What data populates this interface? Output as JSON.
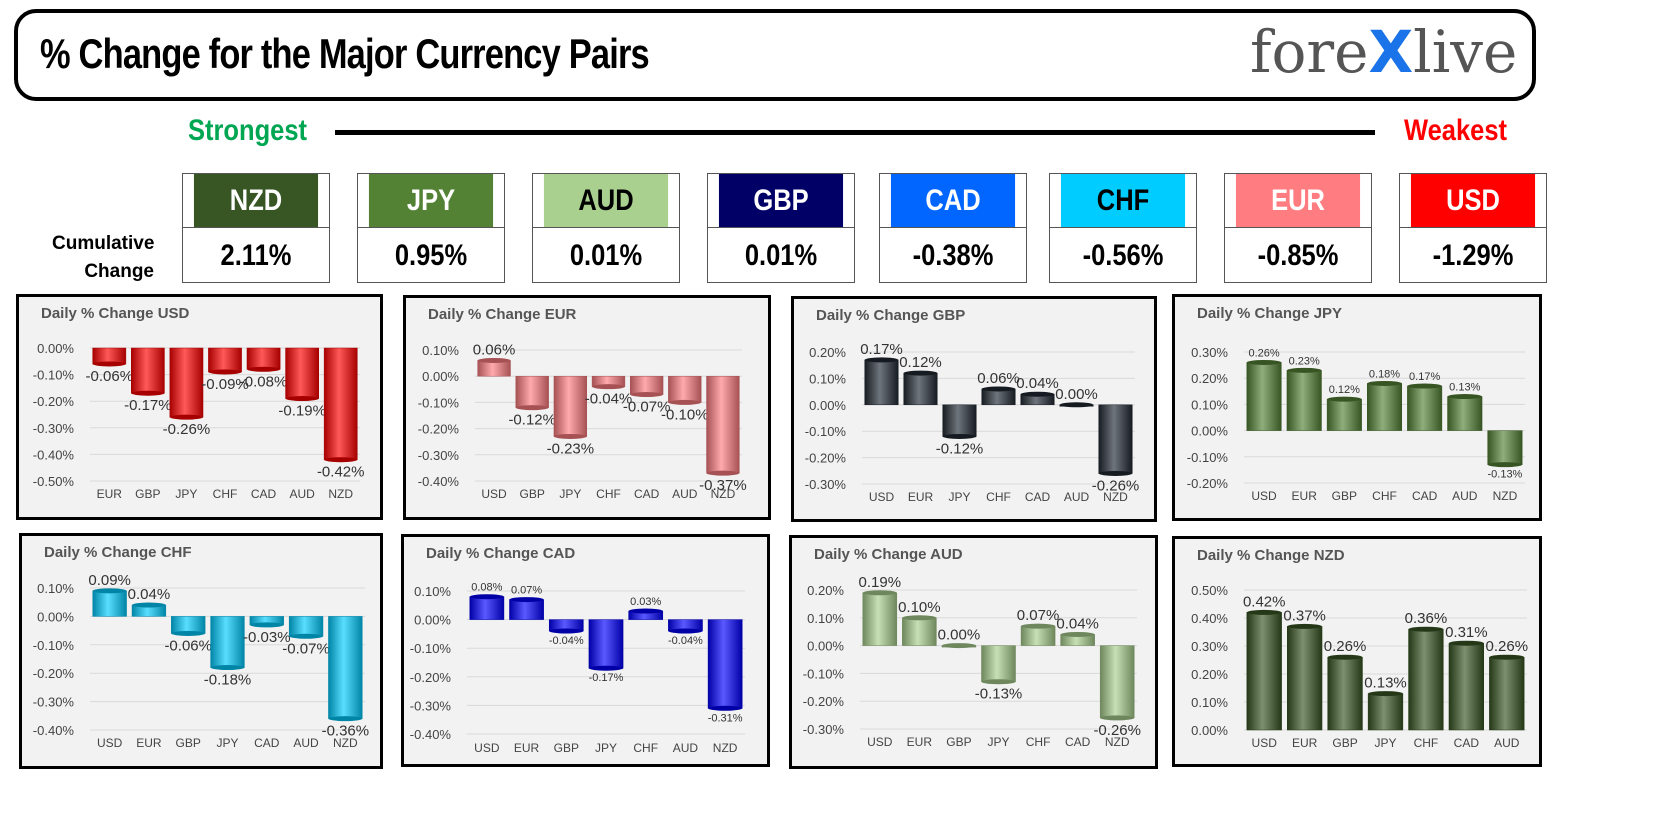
{
  "header": {
    "title": "% Change for the Major Currency Pairs",
    "logo_pre": "fore",
    "logo_x": "X",
    "logo_post": "live"
  },
  "strength_scale": {
    "strongest_label": "Strongest",
    "weakest_label": "Weakest"
  },
  "cumulative_label_line1": "Cumulative",
  "cumulative_label_line2": "Change",
  "currencies": [
    {
      "name": "NZD",
      "value": "2.11%",
      "bg": "#375623",
      "fg": "#ffffff"
    },
    {
      "name": "JPY",
      "value": "0.95%",
      "bg": "#548235",
      "fg": "#ffffff"
    },
    {
      "name": "AUD",
      "value": "0.01%",
      "bg": "#a9d08e",
      "fg": "#000000"
    },
    {
      "name": "GBP",
      "value": "0.01%",
      "bg": "#000066",
      "fg": "#ffffff"
    },
    {
      "name": "CAD",
      "value": "-0.38%",
      "bg": "#0066ff",
      "fg": "#ffffff"
    },
    {
      "name": "CHF",
      "value": "-0.56%",
      "bg": "#00ccff",
      "fg": "#000000"
    },
    {
      "name": "EUR",
      "value": "-0.85%",
      "bg": "#ff7c80",
      "fg": "#ffffff"
    },
    {
      "name": "USD",
      "value": "-1.29%",
      "bg": "#ff0000",
      "fg": "#ffffff"
    }
  ],
  "chart_data": [
    {
      "type": "bar",
      "title": "Daily % Change USD",
      "categories": [
        "EUR",
        "GBP",
        "JPY",
        "CHF",
        "CAD",
        "AUD",
        "NZD"
      ],
      "values": [
        -0.06,
        -0.17,
        -0.26,
        -0.09,
        -0.08,
        -0.19,
        -0.42
      ],
      "ylim": [
        -0.5,
        0.0
      ],
      "yticks": [
        "0.00%",
        "-0.10%",
        "-0.20%",
        "-0.30%",
        "-0.40%",
        "-0.50%"
      ],
      "labels": [
        "-0.06%",
        "-0.17%",
        "-0.26%",
        "-0.09%",
        "-0.08%",
        "-0.19%",
        "-0.42%"
      ],
      "color": "#ff0000",
      "label_size": "large"
    },
    {
      "type": "bar",
      "title": "Daily % Change EUR",
      "categories": [
        "USD",
        "GBP",
        "JPY",
        "CHF",
        "CAD",
        "AUD",
        "NZD"
      ],
      "values": [
        0.06,
        -0.12,
        -0.23,
        -0.04,
        -0.07,
        -0.1,
        -0.37
      ],
      "ylim": [
        -0.4,
        0.1
      ],
      "yticks": [
        "0.10%",
        "0.00%",
        "-0.10%",
        "-0.20%",
        "-0.30%",
        "-0.40%"
      ],
      "labels": [
        "0.06%",
        "-0.12%",
        "-0.23%",
        "-0.04%",
        "-0.07%",
        "-0.10%",
        "-0.37%"
      ],
      "color": "#ff7c80",
      "label_size": "large"
    },
    {
      "type": "bar",
      "title": "Daily % Change GBP",
      "categories": [
        "USD",
        "EUR",
        "JPY",
        "CHF",
        "CAD",
        "AUD",
        "NZD"
      ],
      "values": [
        0.17,
        0.12,
        -0.12,
        0.06,
        0.04,
        0.0,
        -0.26
      ],
      "ylim": [
        -0.3,
        0.2
      ],
      "yticks": [
        "0.20%",
        "0.10%",
        "0.00%",
        "-0.10%",
        "-0.20%",
        "-0.30%"
      ],
      "labels": [
        "0.17%",
        "0.12%",
        "-0.12%",
        "0.06%",
        "0.04%",
        "0.00%",
        "-0.26%"
      ],
      "color": "#222a35",
      "label_size": "large"
    },
    {
      "type": "bar",
      "title": "Daily % Change JPY",
      "categories": [
        "USD",
        "EUR",
        "GBP",
        "CHF",
        "CAD",
        "AUD",
        "NZD"
      ],
      "values": [
        0.26,
        0.23,
        0.12,
        0.18,
        0.17,
        0.13,
        -0.13
      ],
      "ylim": [
        -0.2,
        0.3
      ],
      "yticks": [
        "0.30%",
        "0.20%",
        "0.10%",
        "0.00%",
        "-0.10%",
        "-0.20%"
      ],
      "labels": [
        "0.26%",
        "0.23%",
        "0.12%",
        "0.18%",
        "0.17%",
        "0.13%",
        "-0.13%"
      ],
      "color": "#548235",
      "label_size": "small"
    },
    {
      "type": "bar",
      "title": "Daily % Change CHF",
      "categories": [
        "USD",
        "EUR",
        "GBP",
        "JPY",
        "CAD",
        "AUD",
        "NZD"
      ],
      "values": [
        0.09,
        0.04,
        -0.06,
        -0.18,
        -0.03,
        -0.07,
        -0.36
      ],
      "ylim": [
        -0.4,
        0.1
      ],
      "yticks": [
        "0.10%",
        "0.00%",
        "-0.10%",
        "-0.20%",
        "-0.30%",
        "-0.40%"
      ],
      "labels": [
        "0.09%",
        "0.04%",
        "-0.06%",
        "-0.18%",
        "-0.03%",
        "-0.07%",
        "-0.36%"
      ],
      "color": "#00ccff",
      "label_size": "large"
    },
    {
      "type": "bar",
      "title": "Daily % Change CAD",
      "categories": [
        "USD",
        "EUR",
        "GBP",
        "JPY",
        "CHF",
        "AUD",
        "NZD"
      ],
      "values": [
        0.08,
        0.07,
        -0.04,
        -0.17,
        0.03,
        -0.04,
        -0.31
      ],
      "ylim": [
        -0.4,
        0.1
      ],
      "yticks": [
        "0.10%",
        "0.00%",
        "-0.10%",
        "-0.20%",
        "-0.30%",
        "-0.40%"
      ],
      "labels": [
        "0.08%",
        "0.07%",
        "-0.04%",
        "-0.17%",
        "0.03%",
        "-0.04%",
        "-0.31%"
      ],
      "color": "#0000ff",
      "label_size": "small"
    },
    {
      "type": "bar",
      "title": "Daily % Change AUD",
      "categories": [
        "USD",
        "EUR",
        "GBP",
        "JPY",
        "CHF",
        "CAD",
        "NZD"
      ],
      "values": [
        0.19,
        0.1,
        0.0,
        -0.13,
        0.07,
        0.04,
        -0.26
      ],
      "ylim": [
        -0.3,
        0.2
      ],
      "yticks": [
        "0.20%",
        "0.10%",
        "0.00%",
        "-0.10%",
        "-0.20%",
        "-0.30%"
      ],
      "labels": [
        "0.19%",
        "0.10%",
        "0.00%",
        "-0.13%",
        "0.07%",
        "0.04%",
        "-0.26%"
      ],
      "color": "#a9d08e",
      "label_size": "large"
    },
    {
      "type": "bar",
      "title": "Daily % Change NZD",
      "categories": [
        "USD",
        "EUR",
        "GBP",
        "JPY",
        "CHF",
        "CAD",
        "AUD"
      ],
      "values": [
        0.42,
        0.37,
        0.26,
        0.13,
        0.36,
        0.31,
        0.26
      ],
      "ylim": [
        0.0,
        0.5
      ],
      "yticks": [
        "0.50%",
        "0.40%",
        "0.30%",
        "0.20%",
        "0.10%",
        "0.00%"
      ],
      "labels": [
        "0.42%",
        "0.37%",
        "0.26%",
        "0.13%",
        "0.36%",
        "0.31%",
        "0.26%"
      ],
      "color": "#375623",
      "label_size": "large"
    }
  ]
}
